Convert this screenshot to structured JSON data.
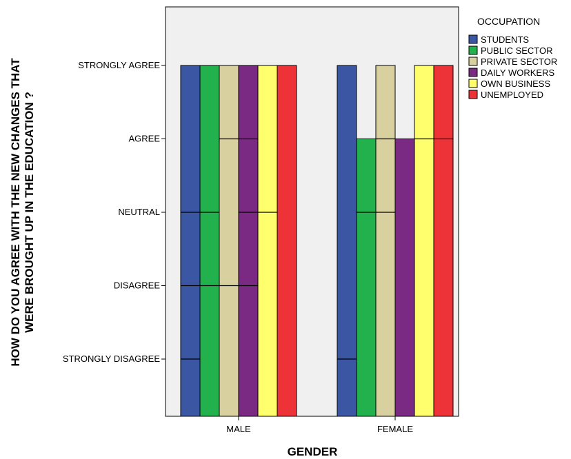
{
  "chart_data": {
    "type": "bar",
    "xlabel": "GENDER",
    "ylabel": "HOW DO YOU AGREE WITH THE NEW CHANGES THAT WERE BROUGHT UP IN THE EDUCATION ?",
    "ylabel_lines": [
      "HOW DO YOU AGREE WITH THE NEW CHANGES THAT",
      "WERE BROUGHT UP IN THE EDUCATION ?"
    ],
    "categories": [
      "MALE",
      "FEMALE"
    ],
    "y_ticks": [
      "STRONGLY DISAGREE",
      "DISAGREE",
      "NEUTRAL",
      "AGREE",
      "STRONGLY AGREE"
    ],
    "legend": {
      "title": "OCCUPATION",
      "placement": "right"
    },
    "series": [
      {
        "name": "STUDENTS",
        "color": "#3b57a4",
        "values": [
          5,
          5
        ],
        "dividers": [
          [
            1,
            2,
            3
          ],
          [
            1
          ]
        ]
      },
      {
        "name": "PUBLIC SECTOR",
        "color": "#22b14c",
        "values": [
          5,
          4
        ],
        "dividers": [
          [
            2,
            3
          ],
          [
            3
          ]
        ]
      },
      {
        "name": "PRIVATE SECTOR",
        "color": "#d9d0a0",
        "values": [
          5,
          5
        ],
        "dividers": [
          [
            2,
            4
          ],
          [
            3,
            4
          ]
        ]
      },
      {
        "name": "DAILY WORKERS",
        "color": "#7a2a82",
        "values": [
          5,
          4
        ],
        "dividers": [
          [
            2,
            3,
            4
          ],
          []
        ]
      },
      {
        "name": "OWN BUSINESS",
        "color": "#ffff6e",
        "values": [
          5,
          5
        ],
        "dividers": [
          [
            3
          ],
          [
            4
          ]
        ]
      },
      {
        "name": "UNEMPLOYED",
        "color": "#ee3338",
        "values": [
          5,
          5
        ],
        "dividers": [
          [],
          [
            4
          ]
        ]
      }
    ],
    "grid": false
  }
}
